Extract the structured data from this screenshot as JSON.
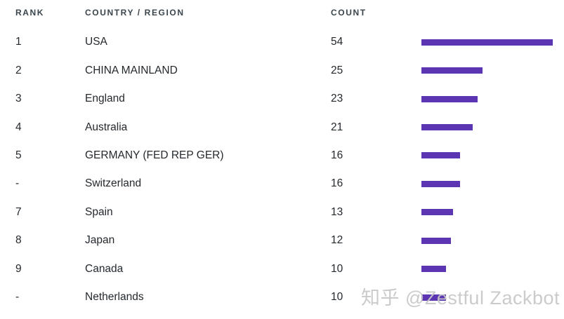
{
  "header": {
    "rank": "RANK",
    "country": "COUNTRY / REGION",
    "count": "COUNT"
  },
  "chart_data": {
    "type": "bar",
    "orientation": "horizontal",
    "title": "",
    "columns": [
      "RANK",
      "COUNTRY / REGION",
      "COUNT"
    ],
    "categories": [
      "USA",
      "CHINA MAINLAND",
      "England",
      "Australia",
      "GERMANY (FED REP GER)",
      "Switzerland",
      "Spain",
      "Japan",
      "Canada",
      "Netherlands"
    ],
    "values": [
      54,
      25,
      23,
      21,
      16,
      16,
      13,
      12,
      10,
      10
    ],
    "rows": [
      {
        "rank": "1",
        "country": "USA",
        "count": 54
      },
      {
        "rank": "2",
        "country": "CHINA MAINLAND",
        "count": 25
      },
      {
        "rank": "3",
        "country": "England",
        "count": 23
      },
      {
        "rank": "4",
        "country": "Australia",
        "count": 21
      },
      {
        "rank": "5",
        "country": "GERMANY (FED REP GER)",
        "count": 16
      },
      {
        "rank": "-",
        "country": "Switzerland",
        "count": 16
      },
      {
        "rank": "7",
        "country": "Spain",
        "count": 13
      },
      {
        "rank": "8",
        "country": "Japan",
        "count": 12
      },
      {
        "rank": "9",
        "country": "Canada",
        "count": 10
      },
      {
        "rank": "-",
        "country": "Netherlands",
        "count": 10
      }
    ],
    "bar_color": "#5b35b2",
    "xlim": [
      0,
      54
    ],
    "grid": false,
    "legend": false
  },
  "colors": {
    "bar": "#5b35b2",
    "header_text": "#3a454d",
    "body_text": "#24292e",
    "watermark_text": "#c7c7c7"
  },
  "watermark": {
    "text": "知乎 @Zestful Zackbot"
  }
}
